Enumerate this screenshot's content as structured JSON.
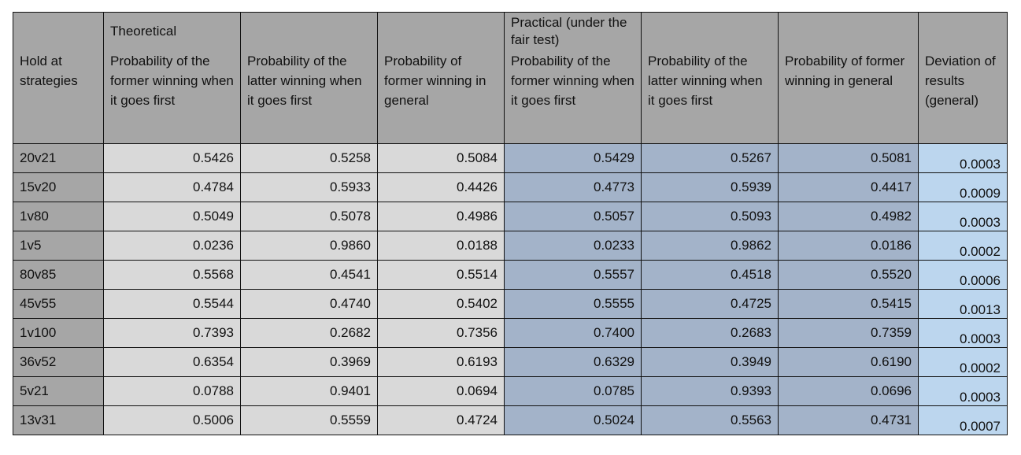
{
  "table": {
    "group_headers": [
      "",
      "Theoretical",
      "",
      "",
      "Practical (under the fair test)",
      "",
      "",
      ""
    ],
    "column_headers": [
      "Hold at strategies",
      "Probability of the former winning when it goes first",
      "Probability of the latter winning when it goes first",
      "Probability of former winning in general",
      "Probability of the former winning when it goes first",
      "Probability of the latter winning when it goes first",
      "Probability of former winning in general",
      "Deviation of results (general)"
    ],
    "rows": [
      [
        "20v21",
        "0.5426",
        "0.5258",
        "0.5084",
        "0.5429",
        "0.5267",
        "0.5081",
        "0.0003"
      ],
      [
        "15v20",
        "0.4784",
        "0.5933",
        "0.4426",
        "0.4773",
        "0.5939",
        "0.4417",
        "0.0009"
      ],
      [
        "1v80",
        "0.5049",
        "0.5078",
        "0.4986",
        "0.5057",
        "0.5093",
        "0.4982",
        "0.0003"
      ],
      [
        "1v5",
        "0.0236",
        "0.9860",
        "0.0188",
        "0.0233",
        "0.9862",
        "0.0186",
        "0.0002"
      ],
      [
        "80v85",
        "0.5568",
        "0.4541",
        "0.5514",
        "0.5557",
        "0.4518",
        "0.5520",
        "0.0006"
      ],
      [
        "45v55",
        "0.5544",
        "0.4740",
        "0.5402",
        "0.5555",
        "0.4725",
        "0.5415",
        "0.0013"
      ],
      [
        "1v100",
        "0.7393",
        "0.2682",
        "0.7356",
        "0.7400",
        "0.2683",
        "0.7359",
        "0.0003"
      ],
      [
        "36v52",
        "0.6354",
        "0.3969",
        "0.6193",
        "0.6329",
        "0.3949",
        "0.6190",
        "0.0002"
      ],
      [
        "5v21",
        "0.0788",
        "0.9401",
        "0.0694",
        "0.0785",
        "0.9393",
        "0.0696",
        "0.0003"
      ],
      [
        "13v31",
        "0.5006",
        "0.5559",
        "0.4724",
        "0.5024",
        "0.5563",
        "0.4731",
        "0.0007"
      ]
    ]
  },
  "colors": {
    "header_gray": "#a6a6a6",
    "theoretical_fill": "#d9d9d9",
    "practical_fill": "#a3b3c9",
    "deviation_fill": "#bcd6ee"
  }
}
